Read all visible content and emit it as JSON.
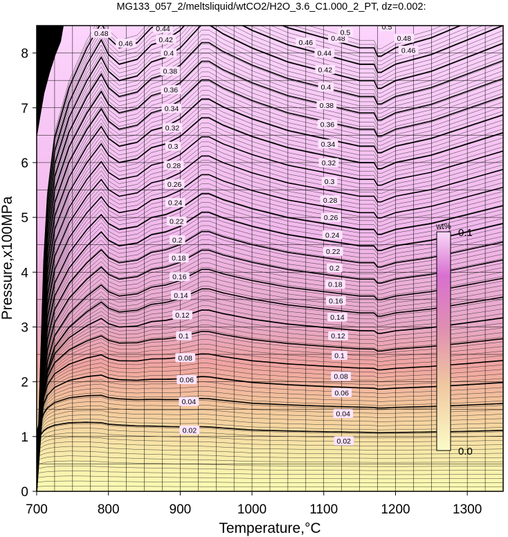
{
  "chart_data": {
    "type": "heatmap",
    "title": "MG133_057_2/meltsliquid/wtCO2/H2O_3.6_C1.000_2_PT, dz=0.002:",
    "xlabel": "Temperature,°C",
    "ylabel": "Pressure,x100MPa",
    "xlim": [
      700,
      1350
    ],
    "ylim": [
      0,
      8.5
    ],
    "x_ticks": [
      700,
      800,
      900,
      1000,
      1100,
      1200,
      1300
    ],
    "y_ticks": [
      0,
      1,
      2,
      3,
      4,
      5,
      6,
      7,
      8
    ],
    "x_tick_labels": [
      "700",
      "800",
      "900",
      "1000",
      "1100",
      "1200",
      "1300"
    ],
    "y_tick_labels": [
      "0",
      "1",
      "2",
      "3",
      "4",
      "5",
      "6",
      "7",
      "8"
    ],
    "grid": true,
    "contour_interval": 0.002,
    "major_contour_interval": 0.02,
    "colorbar": {
      "unit": "wt%",
      "min": 0.0,
      "max": 0.1,
      "min_label": "0.0",
      "max_label": "0.1",
      "colors": [
        "#fcfcb4",
        "#f4c89a",
        "#f0a0a0",
        "#e6a8d0",
        "#f4b8f0",
        "#fcd8fc"
      ]
    },
    "contour_labels": [
      {
        "label": "0.02",
        "x": 913,
        "y": 1.12
      },
      {
        "label": "0.02",
        "x": 1128,
        "y": 0.92
      },
      {
        "label": "0.04",
        "x": 912,
        "y": 1.64
      },
      {
        "label": "0.04",
        "x": 1127,
        "y": 1.42
      },
      {
        "label": "0.06",
        "x": 909,
        "y": 2.04
      },
      {
        "label": "0.06",
        "x": 1125,
        "y": 1.8
      },
      {
        "label": "0.08",
        "x": 907,
        "y": 2.44
      },
      {
        "label": "0.08",
        "x": 1124,
        "y": 2.1
      },
      {
        "label": "0.1",
        "x": 905,
        "y": 2.84
      },
      {
        "label": "0.1",
        "x": 1122,
        "y": 2.48
      },
      {
        "label": "0.12",
        "x": 903,
        "y": 3.22
      },
      {
        "label": "0.12",
        "x": 1120,
        "y": 2.84
      },
      {
        "label": "0.14",
        "x": 901,
        "y": 3.58
      },
      {
        "label": "0.14",
        "x": 1119,
        "y": 3.18
      },
      {
        "label": "0.16",
        "x": 899,
        "y": 3.92
      },
      {
        "label": "0.16",
        "x": 1117,
        "y": 3.48
      },
      {
        "label": "0.18",
        "x": 898,
        "y": 4.26
      },
      {
        "label": "0.18",
        "x": 1116,
        "y": 3.78
      },
      {
        "label": "0.2",
        "x": 896,
        "y": 4.59
      },
      {
        "label": "0.2",
        "x": 1115,
        "y": 4.08
      },
      {
        "label": "0.22",
        "x": 895,
        "y": 4.93
      },
      {
        "label": "0.22",
        "x": 1113,
        "y": 4.38
      },
      {
        "label": "0.24",
        "x": 893,
        "y": 5.27
      },
      {
        "label": "0.24",
        "x": 1112,
        "y": 4.68
      },
      {
        "label": "0.26",
        "x": 892,
        "y": 5.61
      },
      {
        "label": "0.26",
        "x": 1110,
        "y": 5.0
      },
      {
        "label": "0.28",
        "x": 891,
        "y": 5.95
      },
      {
        "label": "0.28",
        "x": 1109,
        "y": 5.32
      },
      {
        "label": "0.3",
        "x": 890,
        "y": 6.3
      },
      {
        "label": "0.3",
        "x": 1108,
        "y": 5.66
      },
      {
        "label": "0.32",
        "x": 889,
        "y": 6.64
      },
      {
        "label": "0.32",
        "x": 1107,
        "y": 6.0
      },
      {
        "label": "0.34",
        "x": 888,
        "y": 6.99
      },
      {
        "label": "0.34",
        "x": 1106,
        "y": 6.34
      },
      {
        "label": "0.36",
        "x": 887,
        "y": 7.33
      },
      {
        "label": "0.36",
        "x": 1105,
        "y": 6.7
      },
      {
        "label": "0.38",
        "x": 886,
        "y": 7.67
      },
      {
        "label": "0.38",
        "x": 1104,
        "y": 7.05
      },
      {
        "label": "0.4",
        "x": 884,
        "y": 8.0
      },
      {
        "label": "0.4",
        "x": 1103,
        "y": 7.38
      },
      {
        "label": "0.42",
        "x": 880,
        "y": 8.25
      },
      {
        "label": "0.42",
        "x": 1102,
        "y": 7.7
      },
      {
        "label": "0.44",
        "x": 876,
        "y": 8.45
      },
      {
        "label": "0.44",
        "x": 1101,
        "y": 8.0
      },
      {
        "label": "0.46",
        "x": 824,
        "y": 8.18
      },
      {
        "label": "0.46",
        "x": 1075,
        "y": 8.2
      },
      {
        "label": "0.46",
        "x": 1218,
        "y": 8.05
      },
      {
        "label": "0.48",
        "x": 790,
        "y": 8.36
      },
      {
        "label": "0.48",
        "x": 1120,
        "y": 8.27
      },
      {
        "label": "0.48",
        "x": 1212,
        "y": 8.27
      },
      {
        "label": "0.5",
        "x": 1130,
        "y": 8.38
      },
      {
        "label": "0.5",
        "x": 1188,
        "y": 8.48
      }
    ]
  }
}
